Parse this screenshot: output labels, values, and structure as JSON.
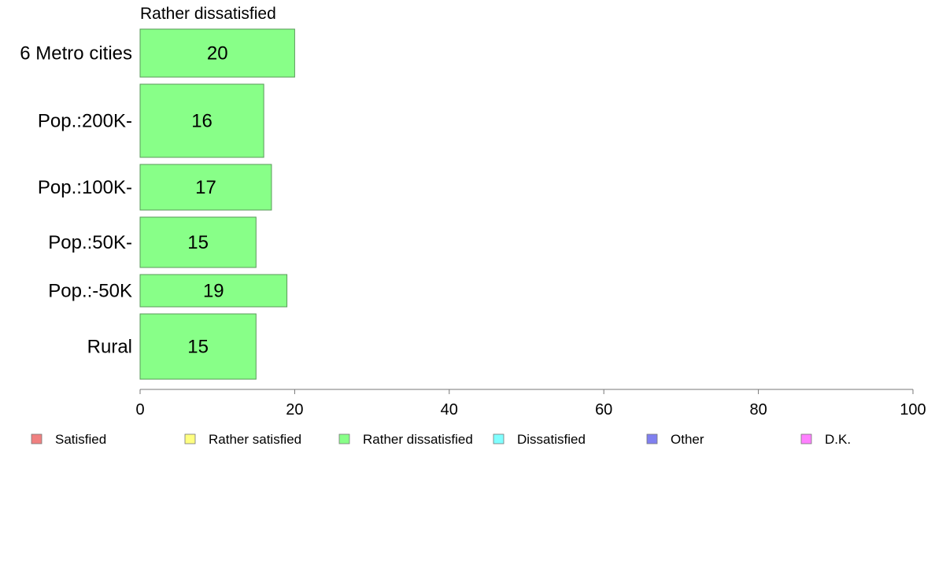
{
  "chart_data": {
    "type": "bar",
    "orientation": "horizontal",
    "title": "Rather dissatisfied",
    "categories": [
      "6 Metro cities",
      "Pop.:200K-",
      "Pop.:100K-",
      "Pop.:50K-",
      "Pop.:-50K",
      "Rural"
    ],
    "series": [
      {
        "name": "Rather dissatisfied",
        "values": [
          20,
          16,
          17,
          15,
          19,
          15
        ],
        "labels": [
          "20",
          "16",
          "17",
          "15",
          "19",
          "15"
        ],
        "color": "#88ff88"
      }
    ],
    "xlim": [
      0,
      100
    ],
    "xticks": [
      0,
      20,
      40,
      60,
      80,
      100
    ],
    "xtick_labels": [
      "0",
      "20",
      "40",
      "60",
      "80",
      "100"
    ],
    "grid": false,
    "legend": {
      "placement": "bottom",
      "entries": [
        {
          "label": "Satisfied",
          "color": "#f08080"
        },
        {
          "label": "Rather satisfied",
          "color": "#ffff80"
        },
        {
          "label": "Rather dissatisfied",
          "color": "#88ff88"
        },
        {
          "label": "Dissatisfied",
          "color": "#80ffff"
        },
        {
          "label": "Other",
          "color": "#8080f0"
        },
        {
          "label": "D.K.",
          "color": "#ff80ff"
        }
      ]
    }
  }
}
